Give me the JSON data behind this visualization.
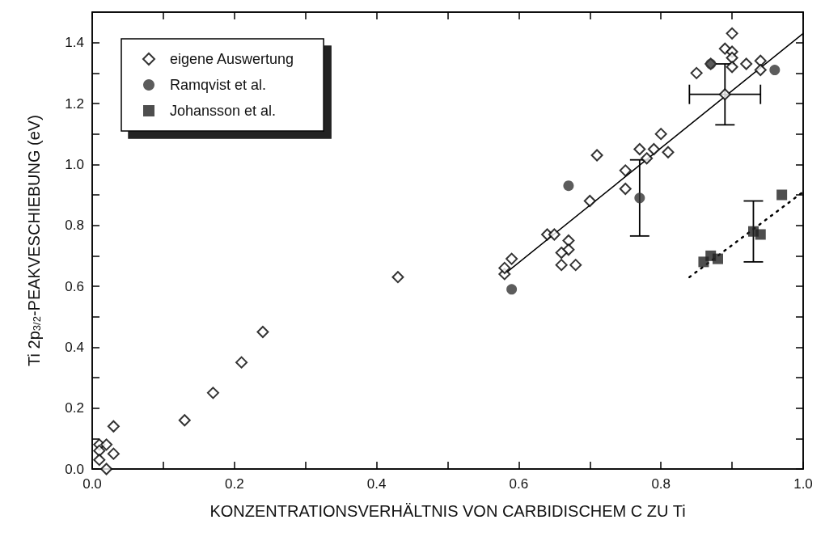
{
  "chart_data": {
    "type": "scatter",
    "xlabel": "KONZENTRATIONSVERHÄLTNIS VON CARBIDISCHEM C ZU Ti",
    "ylabel": "Ti 2p$_{3/2}$-PEAKVESCHIEBUNG (eV)",
    "xlim": [
      0,
      1.0
    ],
    "ylim": [
      0,
      1.5
    ],
    "xticks": [
      {
        "value": 0,
        "label": "0.0"
      },
      {
        "value": 0.1,
        "label": null
      },
      {
        "value": 0.2,
        "label": "0.2"
      },
      {
        "value": 0.3,
        "label": null
      },
      {
        "value": 0.4,
        "label": "0.4"
      },
      {
        "value": 0.5,
        "label": null
      },
      {
        "value": 0.6,
        "label": "0.6"
      },
      {
        "value": 0.7,
        "label": null
      },
      {
        "value": 0.8,
        "label": "0.8"
      },
      {
        "value": 0.9,
        "label": null
      },
      {
        "value": 1.0,
        "label": "1.0"
      }
    ],
    "yticks": [
      {
        "value": 0,
        "label": "0.0"
      },
      {
        "value": 0.1,
        "label": null
      },
      {
        "value": 0.2,
        "label": "0.2"
      },
      {
        "value": 0.3,
        "label": null
      },
      {
        "value": 0.4,
        "label": "0.4"
      },
      {
        "value": 0.5,
        "label": null
      },
      {
        "value": 0.6,
        "label": "0.6"
      },
      {
        "value": 0.7,
        "label": null
      },
      {
        "value": 0.8,
        "label": "0.8"
      },
      {
        "value": 0.9,
        "label": null
      },
      {
        "value": 1.0,
        "label": "1.0"
      },
      {
        "value": 1.1,
        "label": null
      },
      {
        "value": 1.2,
        "label": "1.2"
      },
      {
        "value": 1.3,
        "label": null
      },
      {
        "value": 1.4,
        "label": "1.4"
      }
    ],
    "grid": false,
    "legend": "top left",
    "series": [
      {
        "name": "eigene Auswertung",
        "marker": "diamond",
        "color": "#000000",
        "x": [
          0.01,
          0.02,
          0.01,
          0.01,
          0.02,
          0.03,
          0.03,
          0.13,
          0.17,
          0.21,
          0.24,
          0.43,
          0.58,
          0.58,
          0.59,
          0.64,
          0.65,
          0.67,
          0.67,
          0.66,
          0.66,
          0.68,
          0.7,
          0.71,
          0.75,
          0.75,
          0.77,
          0.78,
          0.79,
          0.8,
          0.81,
          0.85,
          0.87,
          0.89,
          0.9,
          0.9,
          0.9,
          0.9,
          0.92,
          0.94,
          0.94,
          0.89
        ],
        "values": [
          0.08,
          0.08,
          0.06,
          0.03,
          0.0,
          0.05,
          0.14,
          0.16,
          0.25,
          0.35,
          0.45,
          0.63,
          0.64,
          0.66,
          0.69,
          0.77,
          0.77,
          0.75,
          0.72,
          0.71,
          0.67,
          0.67,
          0.88,
          1.03,
          0.98,
          0.92,
          1.05,
          1.02,
          1.05,
          1.1,
          1.04,
          1.3,
          1.33,
          1.38,
          1.43,
          1.37,
          1.35,
          1.32,
          1.33,
          1.34,
          1.31,
          1.23
        ],
        "errors": [
          null,
          null,
          null,
          null,
          null,
          null,
          null,
          null,
          null,
          null,
          null,
          null,
          null,
          null,
          null,
          null,
          null,
          null,
          null,
          null,
          null,
          null,
          null,
          null,
          null,
          null,
          null,
          null,
          null,
          null,
          null,
          null,
          null,
          null,
          null,
          null,
          null,
          null,
          null,
          null,
          null,
          0.1
        ],
        "xerrors": [
          null,
          null,
          null,
          null,
          null,
          null,
          null,
          null,
          null,
          null,
          null,
          null,
          null,
          null,
          null,
          null,
          null,
          null,
          null,
          null,
          null,
          null,
          null,
          null,
          null,
          null,
          null,
          null,
          null,
          null,
          null,
          null,
          null,
          null,
          null,
          null,
          null,
          null,
          null,
          null,
          null,
          0.05
        ]
      },
      {
        "name": "Ramqvist et al.",
        "marker": "circle",
        "color": "#333333",
        "x": [
          0.59,
          0.67,
          0.77,
          0.87,
          0.96
        ],
        "values": [
          0.59,
          0.93,
          0.89,
          1.33,
          1.31
        ],
        "errors": [
          null,
          null,
          0.125,
          null,
          null
        ]
      },
      {
        "name": "Johansson et al.",
        "marker": "square",
        "color": "#222222",
        "x": [
          0.86,
          0.87,
          0.88,
          0.93,
          0.94,
          0.97
        ],
        "values": [
          0.68,
          0.7,
          0.69,
          0.78,
          0.77,
          0.9
        ],
        "errors": [
          null,
          null,
          null,
          0.1,
          null,
          null
        ]
      },
      {
        "type": "line",
        "marker": "none",
        "line_style": "solid",
        "color": "#000000",
        "x": [
          0.58,
          1.0
        ],
        "values": [
          0.64,
          1.43
        ]
      },
      {
        "type": "line",
        "marker": "none",
        "line_style": "dotted",
        "color": "#000000",
        "x": [
          0.84,
          1.0
        ],
        "values": [
          0.63,
          0.91
        ]
      }
    ]
  }
}
